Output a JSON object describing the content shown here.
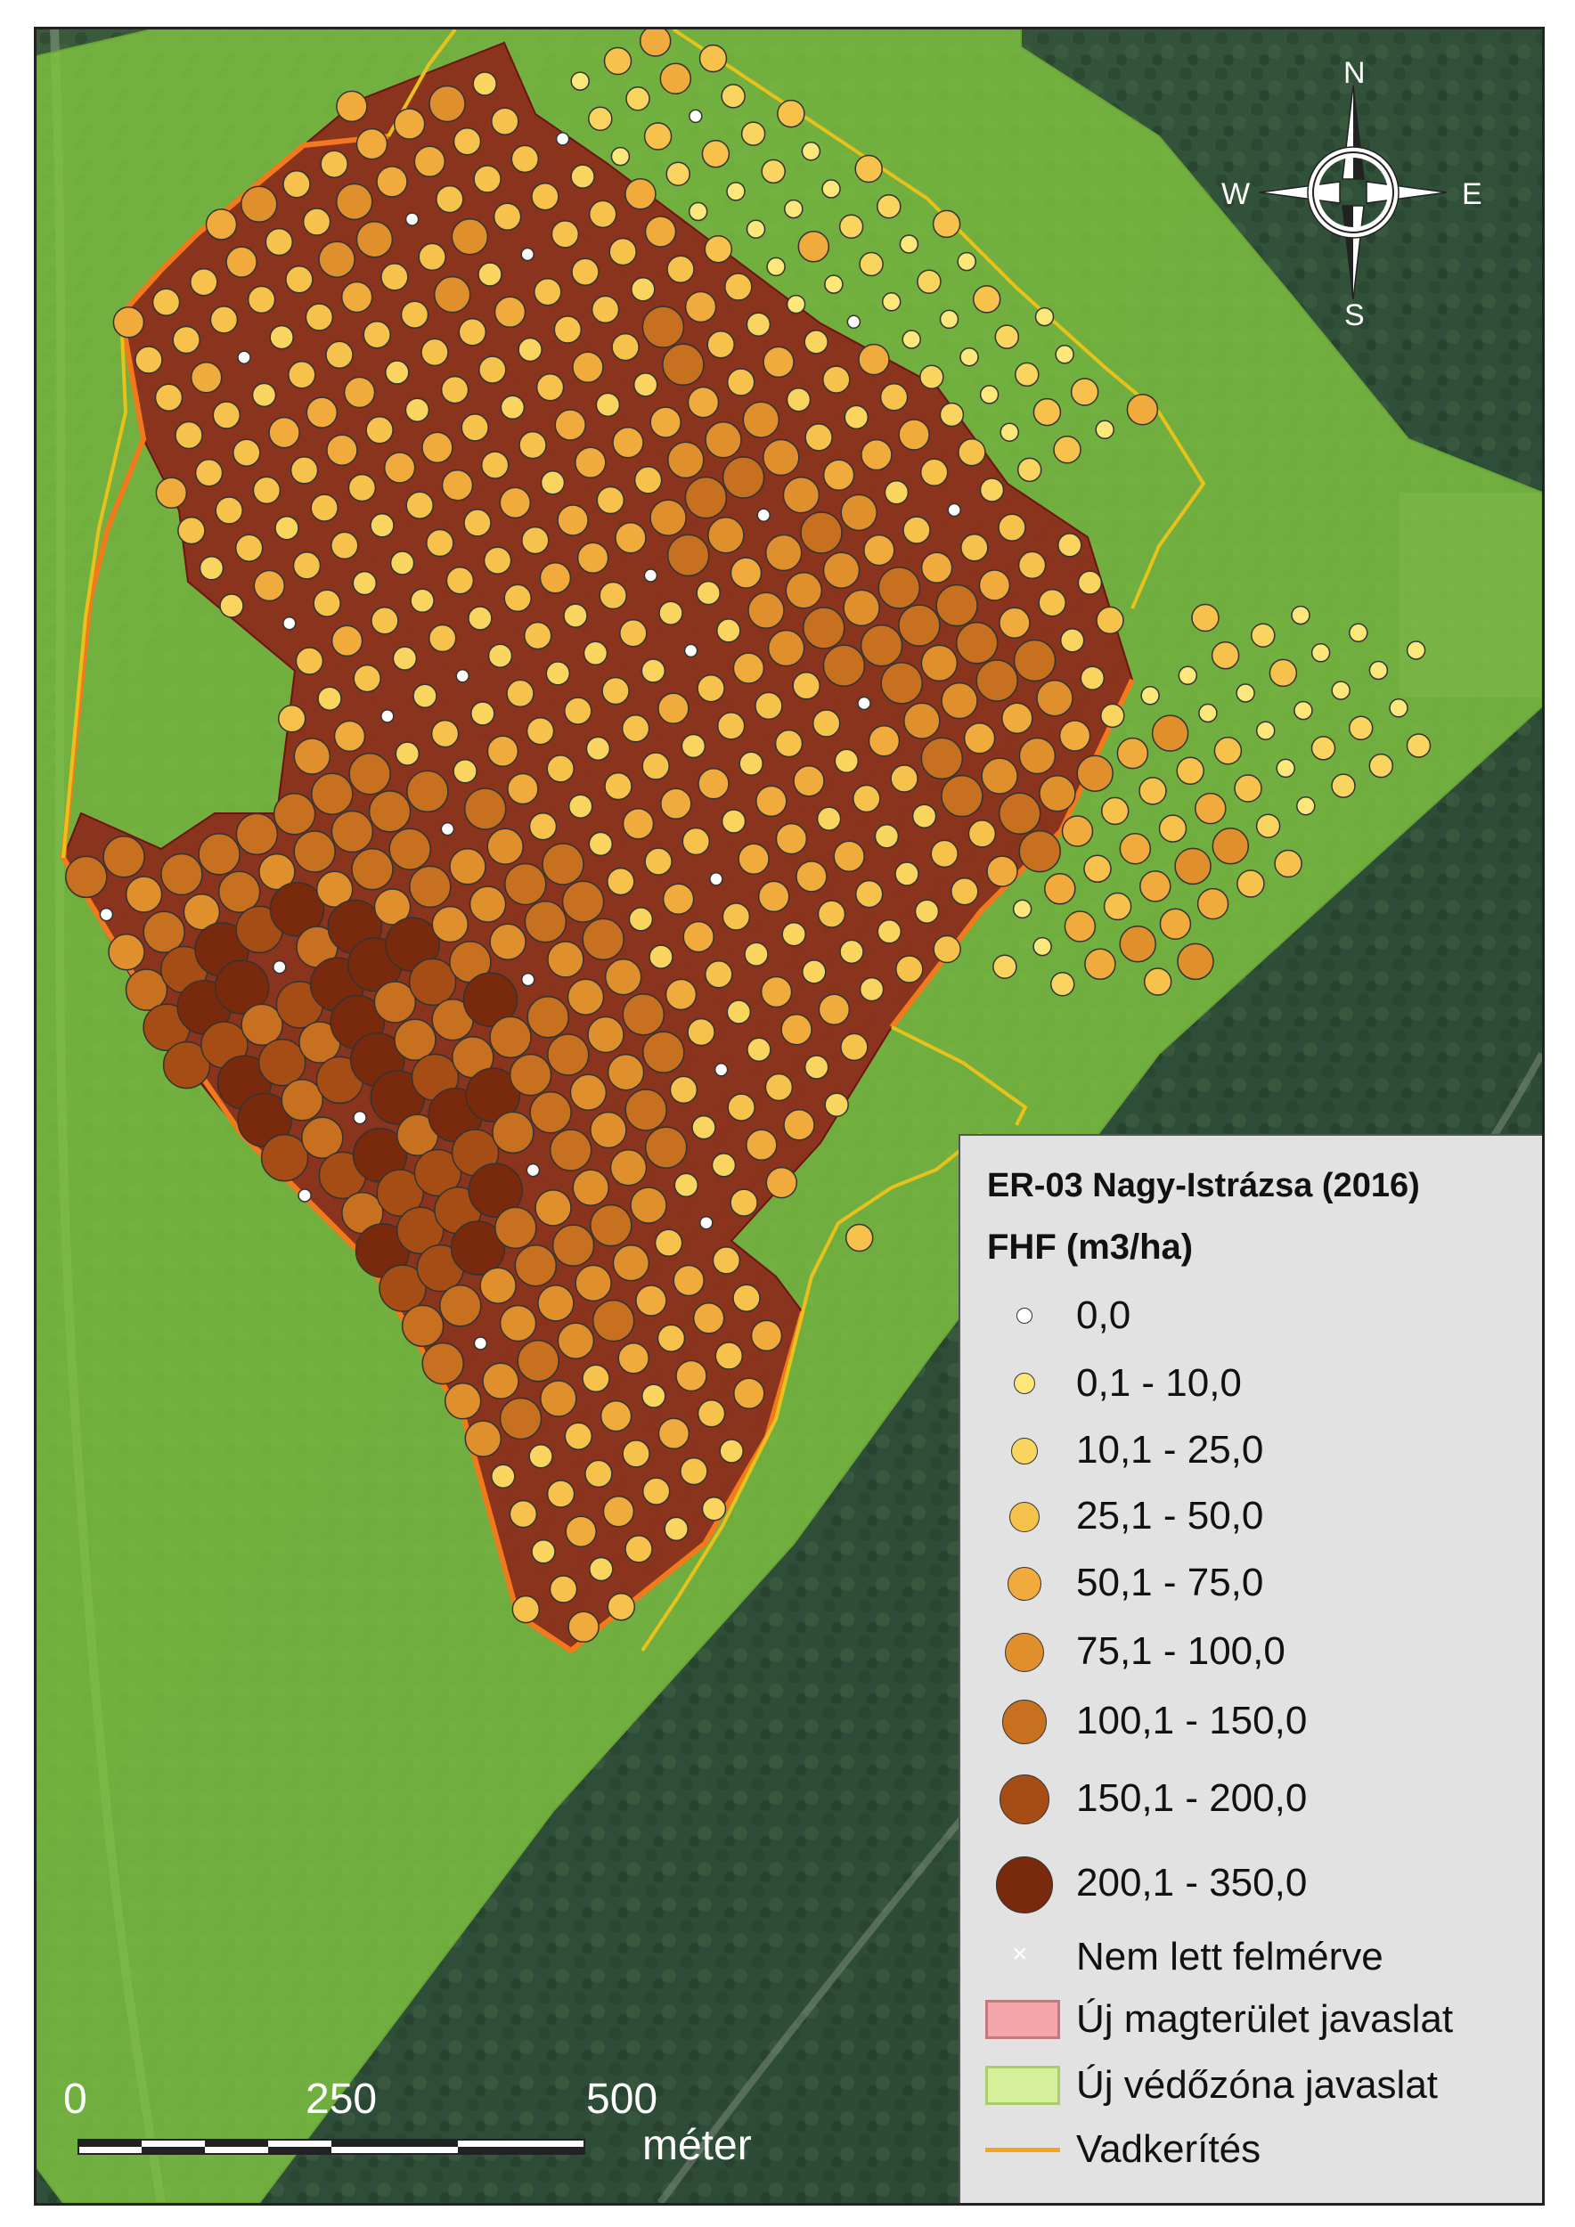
{
  "legend": {
    "title": "ER-03 Nagy-Istrázsa (2016)",
    "subtitle": "FHF (m3/ha)",
    "classes": [
      {
        "label": "0,0",
        "color": "#ffffff",
        "level": 0
      },
      {
        "label": "0,1 - 10,0",
        "color": "#fbe77a",
        "level": 1
      },
      {
        "label": "10,1 - 25,0",
        "color": "#f9d560",
        "level": 2
      },
      {
        "label": "25,1 - 50,0",
        "color": "#f6c24b",
        "level": 3
      },
      {
        "label": "50,1 - 75,0",
        "color": "#f1aa3c",
        "level": 4
      },
      {
        "label": "75,1 - 100,0",
        "color": "#e08f2d",
        "level": 5
      },
      {
        "label": "100,1 - 150,0",
        "color": "#c7701f",
        "level": 6
      },
      {
        "label": "150,1 - 200,0",
        "color": "#a64d15",
        "level": 7
      },
      {
        "label": "200,1 - 350,0",
        "color": "#7a2a0c",
        "level": 8
      }
    ],
    "not_surveyed": "Nem lett felmérve",
    "core_area": "Új magterület javaslat",
    "buffer_zone": "Új védőzóna javaslat",
    "fence": "Vadkerítés",
    "colors": {
      "core_area": "#f4a6aa",
      "buffer_zone": "#d5ef9a",
      "fence": "#f5a21c"
    }
  },
  "scale": {
    "labels": [
      "0",
      "250",
      "500"
    ],
    "unit": "méter"
  },
  "north_arrow": {
    "icon": "compass-rose-icon",
    "n": "N",
    "s": "S",
    "e": "E",
    "w": "W"
  }
}
